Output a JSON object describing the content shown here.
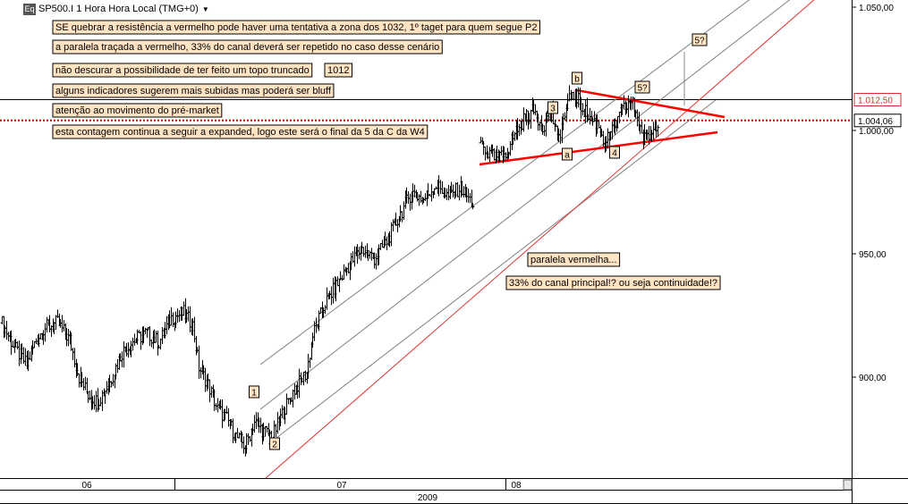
{
  "header": {
    "symbol_badge": "Eq",
    "title": "SP500.I 1 Hora Hora Local (TMG+0)",
    "dropdown_icon": "caret-down-icon"
  },
  "colors": {
    "price_bar": "#000000",
    "channel_line": "#808080",
    "parallel_red": "#e03030",
    "trendline_red": "#ff0000",
    "dotted_level": "#cc0000",
    "note_bg": "#ffe4c4",
    "note_border": "#000000"
  },
  "chart_data": {
    "type": "ohlc",
    "ylim": [
      857,
      1058
    ],
    "yticks": [
      "1.050,00",
      "1.000,00",
      "950,00",
      "900,00"
    ],
    "ytick_values": [
      1050,
      1000,
      950,
      900
    ],
    "x_date_labels": [
      "06",
      "07",
      "08"
    ],
    "x_year_label": "2009",
    "price_tags": [
      {
        "label": "1.012,50",
        "value": 1012.5,
        "style": "red"
      },
      {
        "label": "1.004,06",
        "value": 1004.06,
        "style": "black"
      }
    ],
    "horizontal_lines": [
      {
        "value": 1012.5,
        "style": "solid"
      },
      {
        "value": 1004.06,
        "style": "dotted"
      }
    ],
    "bar_count": 285,
    "price_path": [
      {
        "i": 0,
        "v": 922
      },
      {
        "i": 8,
        "v": 912
      },
      {
        "i": 16,
        "v": 905
      },
      {
        "i": 22,
        "v": 915
      },
      {
        "i": 28,
        "v": 920
      },
      {
        "i": 36,
        "v": 922
      },
      {
        "i": 44,
        "v": 915
      },
      {
        "i": 50,
        "v": 900
      },
      {
        "i": 56,
        "v": 893
      },
      {
        "i": 62,
        "v": 890
      },
      {
        "i": 70,
        "v": 898
      },
      {
        "i": 78,
        "v": 910
      },
      {
        "i": 86,
        "v": 915
      },
      {
        "i": 94,
        "v": 918
      },
      {
        "i": 102,
        "v": 914
      },
      {
        "i": 110,
        "v": 924
      },
      {
        "i": 118,
        "v": 926
      },
      {
        "i": 124,
        "v": 921
      },
      {
        "i": 128,
        "v": 904
      },
      {
        "i": 134,
        "v": 897
      },
      {
        "i": 140,
        "v": 887
      },
      {
        "i": 146,
        "v": 883
      },
      {
        "i": 152,
        "v": 876
      },
      {
        "i": 158,
        "v": 872
      },
      {
        "i": 164,
        "v": 882
      },
      {
        "i": 170,
        "v": 878
      },
      {
        "i": 176,
        "v": 876
      },
      {
        "i": 182,
        "v": 885
      },
      {
        "i": 190,
        "v": 895
      },
      {
        "i": 198,
        "v": 902
      },
      {
        "i": 202,
        "v": 917
      },
      {
        "i": 210,
        "v": 930
      },
      {
        "i": 218,
        "v": 938
      },
      {
        "i": 226,
        "v": 946
      },
      {
        "i": 234,
        "v": 952
      },
      {
        "i": 242,
        "v": 948
      },
      {
        "i": 250,
        "v": 955
      },
      {
        "i": 258,
        "v": 965
      },
      {
        "i": 266,
        "v": 975
      },
      {
        "i": 274,
        "v": 972
      },
      {
        "i": 282,
        "v": 978
      },
      {
        "i": 290,
        "v": 973
      },
      {
        "i": 298,
        "v": 977
      },
      {
        "i": 306,
        "v": 970
      }
    ],
    "price_path_2": [
      {
        "t": 0,
        "v": 995
      },
      {
        "t": 6,
        "v": 990
      },
      {
        "t": 12,
        "v": 988
      },
      {
        "t": 18,
        "v": 992
      },
      {
        "t": 24,
        "v": 1000
      },
      {
        "t": 30,
        "v": 1005
      },
      {
        "t": 36,
        "v": 1008
      },
      {
        "t": 42,
        "v": 1002
      },
      {
        "t": 48,
        "v": 1007
      },
      {
        "t": 52,
        "v": 996
      },
      {
        "t": 58,
        "v": 1008
      },
      {
        "t": 62,
        "v": 1016
      },
      {
        "t": 68,
        "v": 1010
      },
      {
        "t": 74,
        "v": 1005
      },
      {
        "t": 80,
        "v": 1002
      },
      {
        "t": 84,
        "v": 995
      },
      {
        "t": 90,
        "v": 1000
      },
      {
        "t": 96,
        "v": 1008
      },
      {
        "t": 102,
        "v": 1012
      },
      {
        "t": 106,
        "v": 1006
      },
      {
        "t": 110,
        "v": 996
      },
      {
        "t": 116,
        "v": 999
      },
      {
        "t": 120,
        "v": 1004
      }
    ]
  },
  "notes": [
    {
      "id": "note-resistance",
      "text": "SE quebrar a resistência a vermelho pode haver uma tentativa a zona dos 1032, 1º taget para quem segue P2"
    },
    {
      "id": "note-parallel",
      "text": "a paralela traçada a vermelho, 33% do canal deverá ser repetido no caso desse cenário"
    },
    {
      "id": "note-truncated",
      "text": "não descurar a possibilidade de ter feito um topo truncado"
    },
    {
      "id": "note-1012",
      "text": "1012"
    },
    {
      "id": "note-indicators",
      "text": "alguns indicadores sugerem mais subidas mas poderá ser bluff"
    },
    {
      "id": "note-premarket",
      "text": "atenção ao movimento do pré-market"
    },
    {
      "id": "note-count",
      "text": "esta contagem continua a seguir a expanded, logo este será o final da 5 da C da W4"
    },
    {
      "id": "note-red-parallel",
      "text": "paralela vermelha..."
    },
    {
      "id": "note-33pct",
      "text": "33% do canal principal!? ou seja continuidade!?"
    }
  ],
  "wave_labels": [
    "1",
    "2",
    "3",
    "b",
    "a",
    "4",
    "5?",
    "5?"
  ]
}
